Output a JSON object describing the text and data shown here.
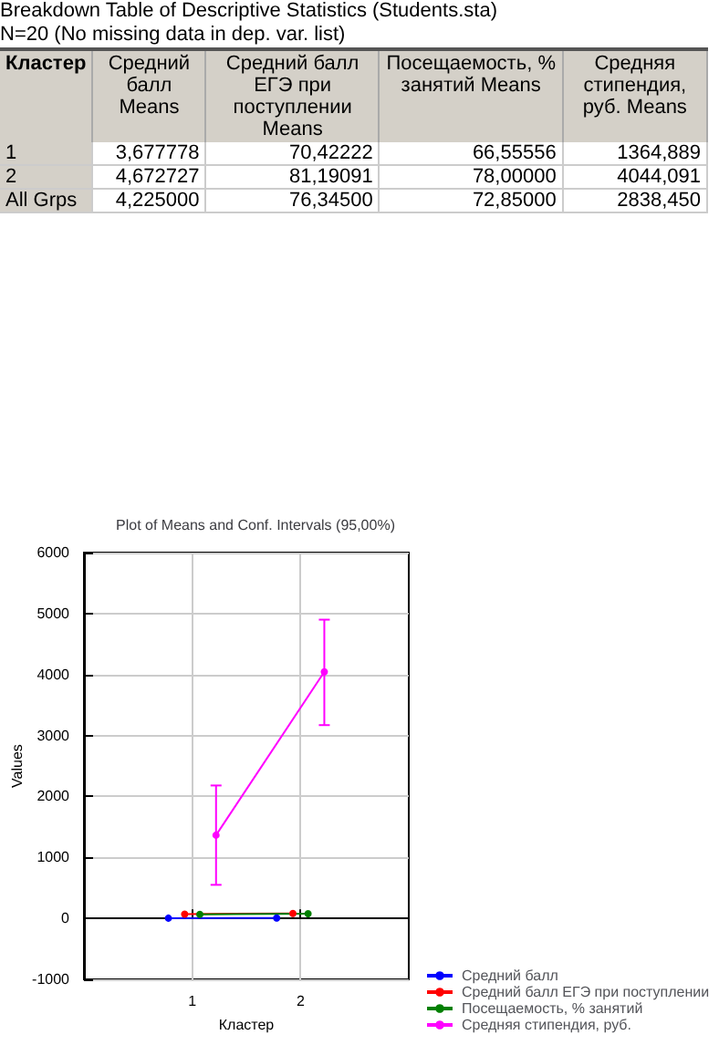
{
  "chart_data": [
    {
      "type": "other",
      "title": "Breakdown Table of Descriptive Statistics (Students.sta)",
      "subtitle": "N=20 (No missing data in dep. var. list)",
      "annotations": [
        "Кластер",
        "Средний балл Means",
        "Средний балл ЕГЭ при поступлении Means",
        "Посещаемость, % занятий Means",
        "Средняя стипендия, руб. Means",
        "1",
        "3,677778",
        "70,42222",
        "66,55556",
        "1364,889",
        "2",
        "4,672727",
        "81,19091",
        "78,00000",
        "4044,091",
        "All Grps",
        "4,225000",
        "76,34500",
        "72,85000",
        "2838,450"
      ]
    },
    {
      "type": "line",
      "title": "Plot of Means and Conf. Intervals (95,00%)",
      "xlabel": "Кластер",
      "ylabel": "Values",
      "xlim": [
        0,
        3
      ],
      "xticks": [
        1,
        2
      ],
      "ylim": [
        -1000,
        6000
      ],
      "yticks": [
        -1000,
        0,
        1000,
        2000,
        3000,
        4000,
        5000,
        6000
      ],
      "grid": true,
      "legend": "bottom right",
      "marker": "circle",
      "series": [
        {
          "name": "Средний балл",
          "color": "#0000ff",
          "x": [
            0.78,
            1.78
          ],
          "values": [
            3.677778,
            4.672727
          ]
        },
        {
          "name": "Средний балл ЕГЭ при поступлении",
          "color": "#ff0000",
          "x": [
            0.93,
            1.93
          ],
          "values": [
            70.42222,
            81.19091
          ]
        },
        {
          "name": "Посещаемость, % занятий",
          "color": "#008000",
          "x": [
            1.07,
            2.07
          ],
          "values": [
            66.55556,
            78.0
          ]
        },
        {
          "name": "Средняя стипендия, руб.",
          "color": "#ff00ff",
          "x": [
            1.22,
            2.22
          ],
          "values": [
            1364.889,
            4044.091
          ],
          "errors": [
            [
              550,
              2180
            ],
            [
              3170,
              4900
            ]
          ]
        }
      ]
    }
  ]
}
